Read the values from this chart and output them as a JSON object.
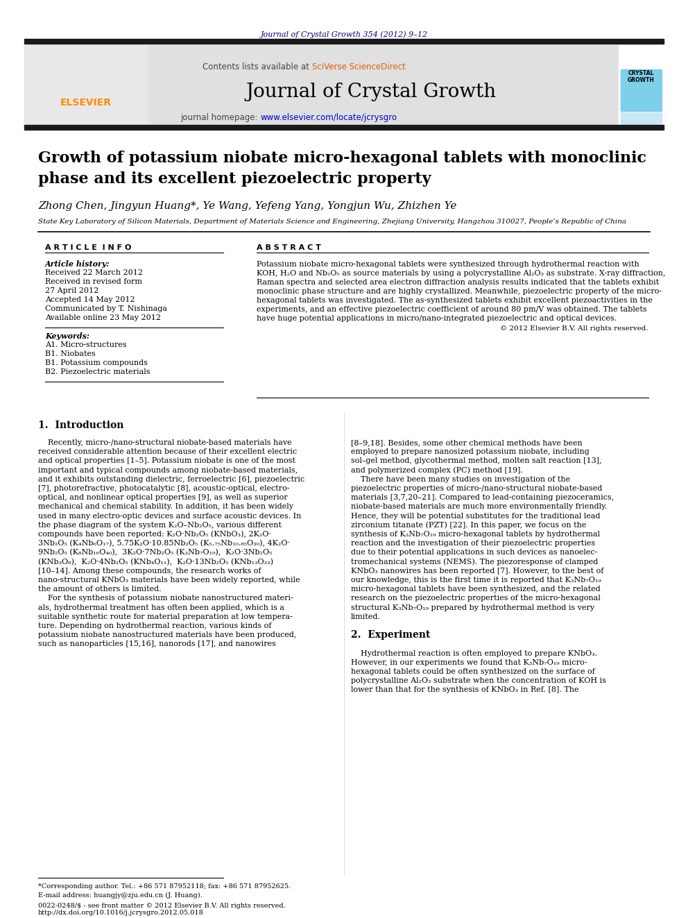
{
  "journal_ref": "Journal of Crystal Growth 354 (2012) 9–12",
  "contents_line": "Contents lists available at ",
  "sciverse": "SciVerse ScienceDirect",
  "journal_title": "Journal of Crystal Growth",
  "homepage_line": "journal homepage: ",
  "homepage_url": "www.elsevier.com/locate/jcrysgro",
  "paper_title_line1": "Growth of potassium niobate micro-hexagonal tablets with monoclinic",
  "paper_title_line2": "phase and its excellent piezoelectric property",
  "authors": "Zhong Chen, Jingyun Huang*, Ye Wang, Yefeng Yang, Yongjun Wu, Zhizhen Ye",
  "affiliation": "State Key Laboratory of Silicon Materials, Department of Materials Science and Engineering, Zhejiang University, Hangzhou 310027, People’s Republic of China",
  "article_info_title": "A R T I C L E  I N F O",
  "abstract_title": "A B S T R A C T",
  "article_history_label": "Article history:",
  "received1": "Received 22 March 2012",
  "revised": "Received in revised form",
  "revised_date": "27 April 2012",
  "accepted": "Accepted 14 May 2012",
  "communicated": "Communicated by T. Nishinaga",
  "available": "Available online 23 May 2012",
  "keywords_label": "Keywords:",
  "kw1": "A1. Micro-structures",
  "kw2": "B1. Niobates",
  "kw3": "B1. Potassium compounds",
  "kw4": "B2. Piezoelectric materials",
  "copyright": "© 2012 Elsevier B.V. All rights reserved.",
  "section1_title": "1.  Introduction",
  "section2_title": "2.  Experiment",
  "footnote1": "*Corresponding author. Tel.: +86 571 87952118; fax: +86 571 87952625.",
  "footnote2": "E-mail address: huangjy@zju.edu.cn (J. Huang).",
  "footer1": "0022-0248/$ - see front matter © 2012 Elsevier B.V. All rights reserved.",
  "footer2": "http://dx.doi.org/10.1016/j.jcrysgro.2012.05.018",
  "bg_color": "#ffffff",
  "dark_bar_color": "#1a1a1a",
  "journal_ref_color": "#000080",
  "sciverse_color": "#e06000",
  "url_color": "#0000cc",
  "elsevier_color": "#FF8C00",
  "abstract_lines": [
    "Potassium niobate micro-hexagonal tablets were synthesized through hydrothermal reaction with",
    "KOH, H₂O and Nb₂O₅ as source materials by using a polycrystalline Al₂O₃ as substrate. X-ray diffraction,",
    "Raman spectra and selected area electron diffraction analysis results indicated that the tablets exhibit",
    "monoclinic phase structure and are highly crystallized. Meanwhile, piezoelectric property of the micro-",
    "hexagonal tablets was investigated. The as-synthesized tablets exhibit excellent piezoactivities in the",
    "experiments, and an effective piezoelectric coefficient of around 80 pm/V was obtained. The tablets",
    "have huge potential applications in micro/nano-integrated piezoelectric and optical devices."
  ],
  "left_col_lines": [
    "    Recently, micro-/nano-structural niobate-based materials have",
    "received considerable attention because of their excellent electric",
    "and optical properties [1–5]. Potassium niobate is one of the most",
    "important and typical compounds among niobate-based materials,",
    "and it exhibits outstanding dielectric, ferroelectric [6], piezoelectric",
    "[7], photorefractive, photocatalytic [8], acoustic-optical, electro-",
    "optical, and nonlinear optical properties [9], as well as superior",
    "mechanical and chemical stability. In addition, it has been widely",
    "used in many electro-optic devices and surface acoustic devices. In",
    "the phase diagram of the system K₂O–Nb₂O₅, various different",
    "compounds have been reported: K₂O·Nb₂O₅ (KNbO₃), 2K₂O·",
    "3Nb₂O₅ (K₄Nb₆O₁₇), 5.75K₂O·10.85Nb₂O₅ (K₅.₇₅Nb₁₀.₈₅O₃₀), 4K₂O·",
    "9Nb₂O₅ (K₈Nb₁₆O₄₀),  3K₂O·7Nb₂O₅ (K₃Nb₇O₁₉),  K₂O·3Nb₂O₅",
    "(KNb₃O₈),  K₂O·4Nb₂O₅ (KNb₄O₁₁),  K₂O·13Nb₂O₅ (KNb₁₃O₃₃)",
    "[10–14]. Among these compounds, the research works of",
    "nano-structural KNbO₃ materials have been widely reported, while",
    "the amount of others is limited.",
    "    For the synthesis of potassium niobate nanostructured materi-",
    "als, hydrothermal treatment has often been applied, which is a",
    "suitable synthetic route for material preparation at low tempera-",
    "ture. Depending on hydrothermal reaction, various kinds of",
    "potassium niobate nanostructured materials have been produced,",
    "such as nanoparticles [15,16], nanorods [17], and nanowires"
  ],
  "right_col_lines": [
    "[8–9,18]. Besides, some other chemical methods have been",
    "employed to prepare nanosized potassium niobate, including",
    "sol–gel method, glycothermal method, molten salt reaction [13],",
    "and polymerized complex (PC) method [19].",
    "    There have been many studies on investigation of the",
    "piezoelectric properties of micro-/nano-structural niobate-based",
    "materials [3,7,20–21]. Compared to lead-containing piezoceramics,",
    "niobate-based materials are much more environmentally friendly.",
    "Hence, they will be potential substitutes for the traditional lead",
    "zirconium titanate (PZT) [22]. In this paper, we focus on the",
    "synthesis of K₃Nb₇O₁₉ micro-hexagonal tablets by hydrothermal",
    "reaction and the investigation of their piezoelectric properties",
    "due to their potential applications in such devices as nanoelec-",
    "tromechanical systems (NEMS). The piezoresponse of clamped",
    "KNbO₃ nanowires has been reported [7]. However, to the best of",
    "our knowledge, this is the first time it is reported that K₃Nb₇O₁₉",
    "micro-hexagonal tablets have been synthesized, and the related",
    "research on the piezoelectric properties of the micro-hexagonal",
    "structural K₃Nb₇O₁₉ prepared by hydrothermal method is very",
    "limited.",
    "",
    "2.  Experiment",
    "",
    "    Hydrothermal reaction is often employed to prepare KNbO₃.",
    "However, in our experiments we found that K₃Nb₇O₁₉ micro-",
    "hexagonal tablets could be often synthesized on the surface of",
    "polycrystalline Al₂O₃ substrate when the concentration of KOH is",
    "lower than that for the synthesis of KNbO₃ in Ref. [8]. The"
  ]
}
